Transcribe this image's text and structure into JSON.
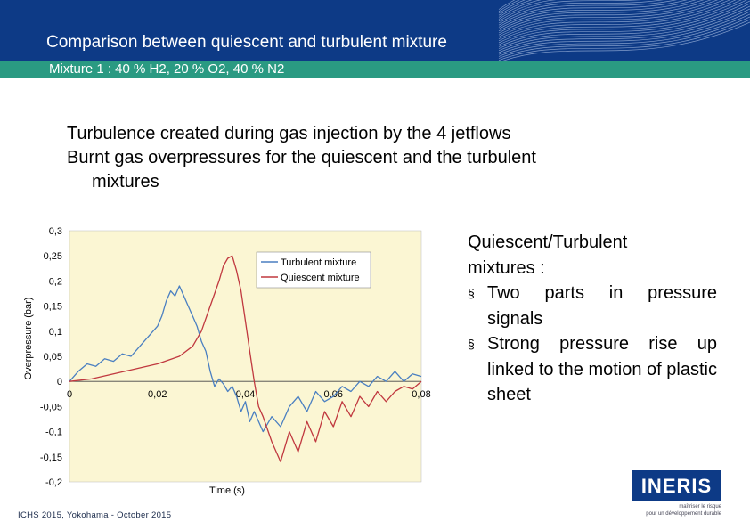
{
  "header": {
    "title": "Comparison between quiescent and turbulent mixture"
  },
  "band": {
    "text": "Mixture 1 : 40 % H2, 20 % O2, 40 % N2"
  },
  "bullets": [
    "Turbulence created during gas injection by the 4 jetflows",
    "Burnt gas overpressures for the quiescent and the turbulent",
    "mixtures"
  ],
  "side": {
    "intro1": "Quiescent/Turbulent",
    "intro2": "mixtures :",
    "items": [
      "Two parts in pressure signals",
      "Strong pressure rise up linked to the motion of plastic sheet"
    ]
  },
  "footer": {
    "text": "ICHS 2015, Yokohama - October 2015"
  },
  "logo": {
    "text": "INERIS",
    "tagline1": "maîtriser le risque",
    "tagline2": "pour un développement durable"
  },
  "colors": {
    "header": "#0d3a86",
    "band": "#2a9a82",
    "plot_bg": "#fbf6d3",
    "turbulent": "#4a7fc1",
    "quiescent": "#c0383f"
  },
  "chart_data": {
    "type": "line",
    "xlabel": "Time (s)",
    "ylabel": "Overpressure (bar)",
    "xlim": [
      0,
      0.08
    ],
    "ylim": [
      -0.2,
      0.3
    ],
    "xticks": [
      "0",
      "0,02",
      "0,04",
      "0,06",
      "0,08"
    ],
    "yticks": [
      "0,3",
      "0,25",
      "0,2",
      "0,15",
      "0,1",
      "0,05",
      "0",
      "-0,05",
      "-0,1",
      "-0,15",
      "-0,2"
    ],
    "legend_position": "top-right",
    "series": [
      {
        "name": "Turbulent mixture",
        "x": [
          0,
          0.002,
          0.004,
          0.006,
          0.008,
          0.01,
          0.012,
          0.014,
          0.016,
          0.018,
          0.02,
          0.021,
          0.022,
          0.023,
          0.024,
          0.025,
          0.026,
          0.027,
          0.028,
          0.029,
          0.03,
          0.031,
          0.032,
          0.033,
          0.034,
          0.035,
          0.036,
          0.037,
          0.038,
          0.039,
          0.04,
          0.041,
          0.042,
          0.044,
          0.046,
          0.048,
          0.05,
          0.052,
          0.054,
          0.056,
          0.058,
          0.06,
          0.062,
          0.064,
          0.066,
          0.068,
          0.07,
          0.072,
          0.074,
          0.076,
          0.078,
          0.08
        ],
        "values": [
          0,
          0.02,
          0.035,
          0.03,
          0.045,
          0.04,
          0.055,
          0.05,
          0.07,
          0.09,
          0.11,
          0.13,
          0.16,
          0.18,
          0.17,
          0.19,
          0.17,
          0.15,
          0.13,
          0.11,
          0.08,
          0.06,
          0.02,
          -0.01,
          0.005,
          -0.005,
          -0.02,
          -0.01,
          -0.03,
          -0.06,
          -0.04,
          -0.08,
          -0.06,
          -0.1,
          -0.07,
          -0.09,
          -0.05,
          -0.03,
          -0.06,
          -0.02,
          -0.04,
          -0.03,
          -0.01,
          -0.02,
          0.0,
          -0.01,
          0.01,
          0.0,
          0.02,
          0.0,
          0.015,
          0.01
        ]
      },
      {
        "name": "Quiescent mixture",
        "x": [
          0,
          0.005,
          0.01,
          0.015,
          0.02,
          0.025,
          0.028,
          0.03,
          0.032,
          0.034,
          0.035,
          0.036,
          0.037,
          0.038,
          0.039,
          0.04,
          0.041,
          0.042,
          0.043,
          0.044,
          0.046,
          0.048,
          0.05,
          0.052,
          0.054,
          0.056,
          0.058,
          0.06,
          0.062,
          0.064,
          0.066,
          0.068,
          0.07,
          0.072,
          0.074,
          0.076,
          0.078,
          0.08
        ],
        "values": [
          0,
          0.005,
          0.015,
          0.025,
          0.035,
          0.05,
          0.07,
          0.1,
          0.15,
          0.2,
          0.23,
          0.245,
          0.25,
          0.22,
          0.18,
          0.12,
          0.06,
          0.0,
          -0.05,
          -0.07,
          -0.12,
          -0.16,
          -0.1,
          -0.14,
          -0.08,
          -0.12,
          -0.06,
          -0.09,
          -0.04,
          -0.07,
          -0.03,
          -0.05,
          -0.02,
          -0.04,
          -0.02,
          -0.01,
          -0.015,
          0.0
        ]
      }
    ]
  }
}
